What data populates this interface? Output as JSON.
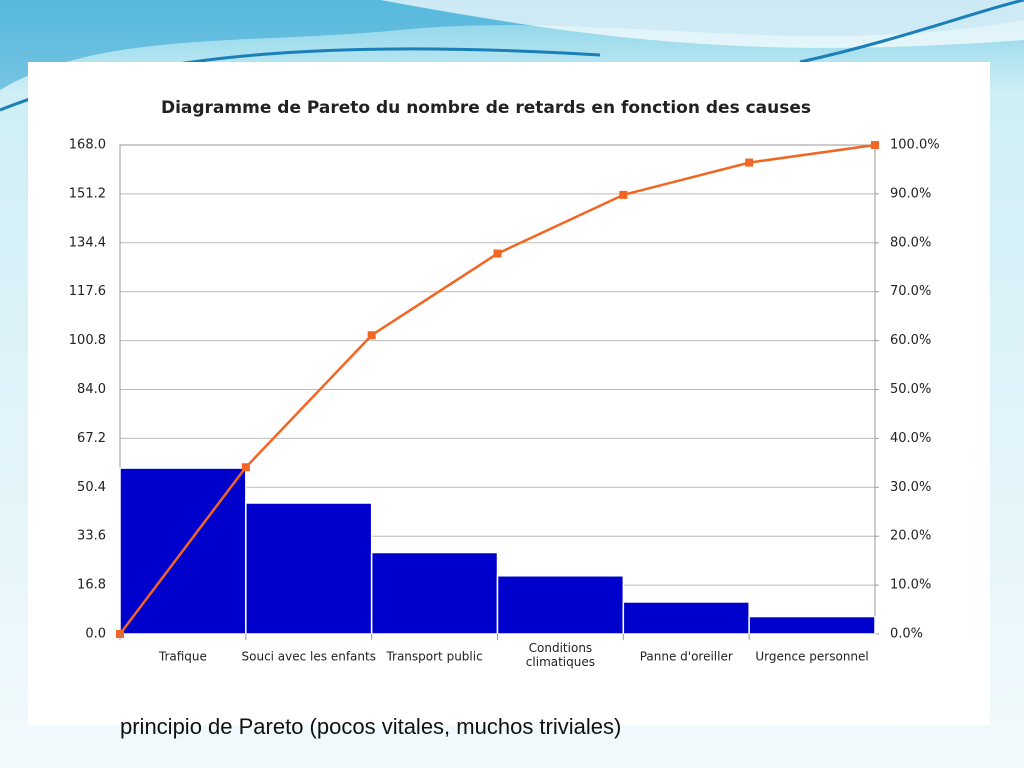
{
  "chart_data": {
    "type": "pareto",
    "title": "Diagramme de Pareto du nombre de retards en fonction des causes",
    "categories": [
      "Trafique",
      "Souci avec les enfants",
      "Transport public",
      "Conditions\nclimatiques",
      "Panne d'oreiller",
      "Urgence personnel"
    ],
    "series": [
      {
        "type": "bar",
        "color": "#0000cc",
        "values": [
          57,
          45,
          28,
          20,
          11,
          6
        ]
      },
      {
        "type": "line",
        "axis": "y2",
        "color": "#f26522",
        "x": [
          0,
          1,
          2,
          3,
          4,
          5,
          6
        ],
        "values": [
          0,
          34.1,
          61.1,
          77.8,
          89.8,
          96.4,
          100
        ]
      }
    ],
    "xlim": [
      0,
      6
    ],
    "ylim": [
      0,
      168
    ],
    "yticks": [
      {
        "value": 0,
        "label": "0.0"
      },
      {
        "value": 16.8,
        "label": "16.8"
      },
      {
        "value": 33.6,
        "label": "33.6"
      },
      {
        "value": 50.4,
        "label": "50.4"
      },
      {
        "value": 67.2,
        "label": "67.2"
      },
      {
        "value": 84,
        "label": "84.0"
      },
      {
        "value": 100.8,
        "label": "100.8"
      },
      {
        "value": 117.6,
        "label": "117.6"
      },
      {
        "value": 134.4,
        "label": "134.4"
      },
      {
        "value": 151.2,
        "label": "151.2"
      },
      {
        "value": 168,
        "label": "168.0"
      }
    ],
    "y2lim": [
      0,
      100
    ],
    "y2ticks": [
      {
        "value": 0,
        "label": "0.0%"
      },
      {
        "value": 10,
        "label": "10.0%"
      },
      {
        "value": 20,
        "label": "20.0%"
      },
      {
        "value": 30,
        "label": "30.0%"
      },
      {
        "value": 40,
        "label": "40.0%"
      },
      {
        "value": 50,
        "label": "50.0%"
      },
      {
        "value": 60,
        "label": "60.0%"
      },
      {
        "value": 70,
        "label": "70.0%"
      },
      {
        "value": 80,
        "label": "80.0%"
      },
      {
        "value": 90,
        "label": "90.0%"
      },
      {
        "value": 100,
        "label": "100.0%"
      }
    ],
    "grid": true
  },
  "caption": "principio de Pareto (pocos vitales, muchos triviales)"
}
